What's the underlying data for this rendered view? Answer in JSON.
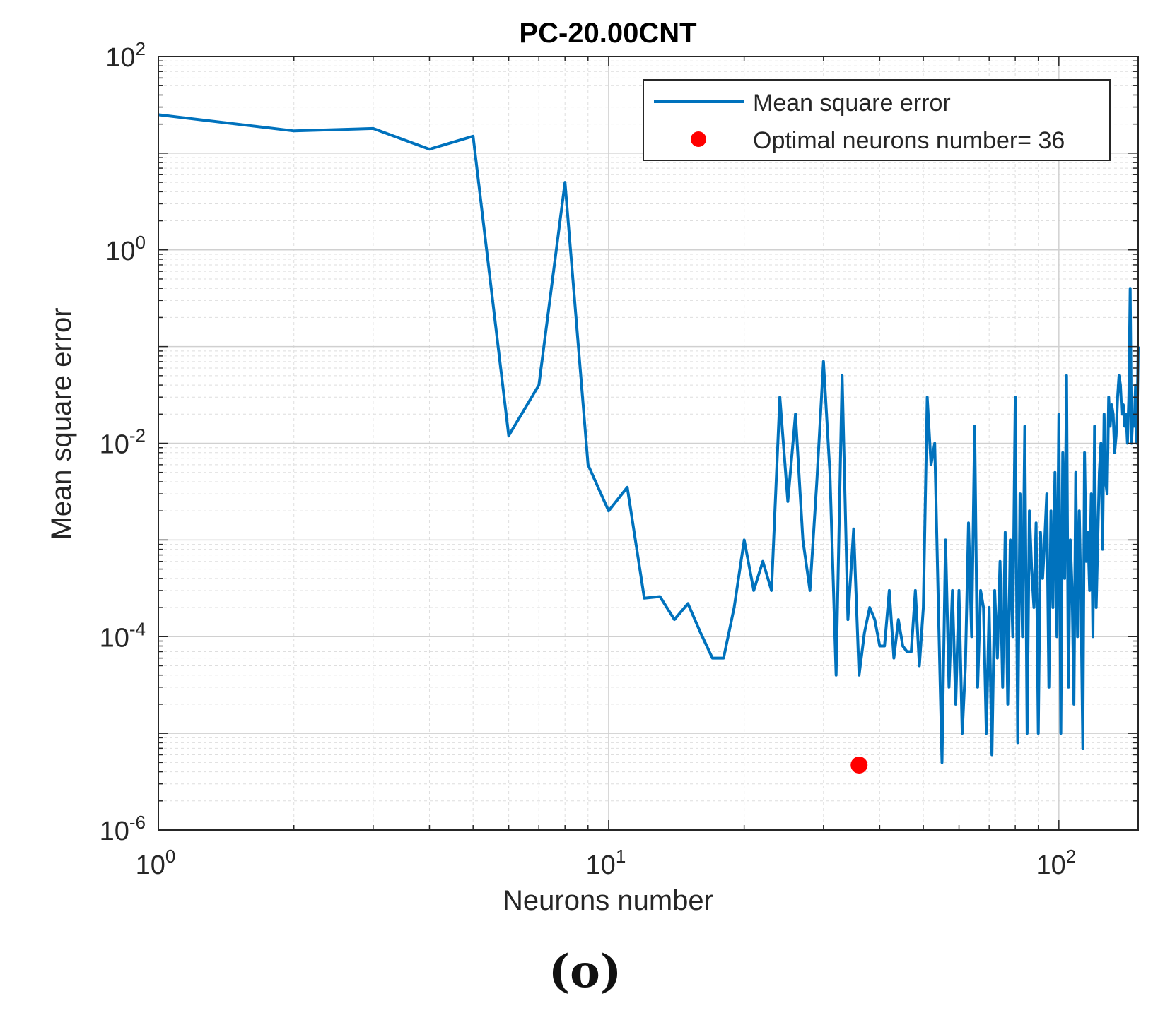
{
  "chart_data": {
    "type": "line",
    "title": "PC-20.00CNT",
    "xlabel": "Neurons number",
    "ylabel": "Mean square error",
    "xscale": "log",
    "yscale": "log",
    "xlim": [
      1,
      150
    ],
    "ylim": [
      1e-06,
      100
    ],
    "grid": true,
    "minor_grid": true,
    "x_ticks": [
      {
        "value": 1,
        "base": "10",
        "exp": "0"
      },
      {
        "value": 10,
        "base": "10",
        "exp": "1"
      },
      {
        "value": 100,
        "base": "10",
        "exp": "2"
      }
    ],
    "y_ticks": [
      {
        "value": 1e-06,
        "base": "10",
        "exp": "-6"
      },
      {
        "value": 0.0001,
        "base": "10",
        "exp": "-4"
      },
      {
        "value": 0.01,
        "base": "10",
        "exp": "-2"
      },
      {
        "value": 1,
        "base": "10",
        "exp": "0"
      },
      {
        "value": 100,
        "base": "10",
        "exp": "2"
      }
    ],
    "legend": {
      "position": "top-right",
      "entries": [
        {
          "label": "Mean square error",
          "kind": "line"
        },
        {
          "label": "Optimal neurons number= 36",
          "kind": "marker"
        }
      ]
    },
    "series": [
      {
        "name": "Mean square error",
        "color": "#0072BD",
        "x": [
          1,
          2,
          3,
          4,
          5,
          6,
          7,
          8,
          9,
          10,
          11,
          12,
          13,
          14,
          15,
          16,
          17,
          18,
          19,
          20,
          21,
          22,
          23,
          24,
          25,
          26,
          27,
          28,
          29,
          30,
          31,
          32,
          33,
          34,
          35,
          36,
          37,
          38,
          39,
          40,
          41,
          42,
          43,
          44,
          45,
          46,
          47,
          48,
          49,
          50,
          51,
          52,
          53,
          54,
          55,
          56,
          57,
          58,
          59,
          60,
          61,
          62,
          63,
          64,
          65,
          66,
          67,
          68,
          69,
          70,
          71,
          72,
          73,
          74,
          75,
          76,
          77,
          78,
          79,
          80,
          81,
          82,
          83,
          84,
          85,
          86,
          87,
          88,
          89,
          90,
          91,
          92,
          93,
          94,
          95,
          96,
          97,
          98,
          99,
          100,
          101,
          102,
          103,
          104,
          105,
          106,
          107,
          108,
          109,
          110,
          111,
          112,
          113,
          114,
          115,
          116,
          117,
          118,
          119,
          120,
          121,
          122,
          123,
          124,
          125,
          126,
          127,
          128,
          129,
          130,
          131,
          132,
          133,
          134,
          135,
          136,
          137,
          138,
          139,
          140,
          141,
          142,
          143,
          144,
          145,
          146,
          147,
          148,
          149,
          150
        ],
        "y": [
          25,
          17,
          18,
          11,
          15,
          0.012,
          0.04,
          5,
          0.006,
          0.002,
          0.0035,
          0.00025,
          0.00026,
          0.00015,
          0.00022,
          0.00011,
          6e-05,
          6e-05,
          0.0002,
          0.001,
          0.0003,
          0.0006,
          0.0003,
          0.03,
          0.0025,
          0.02,
          0.001,
          0.0003,
          0.004,
          0.07,
          0.005,
          4e-05,
          0.05,
          0.00015,
          0.0013,
          4e-05,
          0.00011,
          0.0002,
          0.00015,
          8e-05,
          8e-05,
          0.0003,
          6e-05,
          0.00015,
          8e-05,
          7e-05,
          7e-05,
          0.0003,
          5e-05,
          0.0002,
          0.03,
          0.006,
          0.01,
          0.0002,
          5e-06,
          0.001,
          3e-05,
          0.0003,
          2e-05,
          0.0003,
          1e-05,
          5e-05,
          0.0015,
          0.0001,
          0.015,
          3e-05,
          0.0003,
          0.0002,
          1e-05,
          0.0002,
          6e-06,
          0.0003,
          6e-05,
          0.0006,
          3e-05,
          0.0012,
          2e-05,
          0.001,
          0.0001,
          0.03,
          8e-06,
          0.003,
          0.0001,
          0.015,
          1e-05,
          0.002,
          0.0005,
          0.0002,
          0.0015,
          1e-05,
          0.0012,
          0.0004,
          0.001,
          0.003,
          3e-05,
          0.002,
          0.0002,
          0.005,
          0.0001,
          0.02,
          1e-05,
          0.008,
          0.0004,
          0.05,
          3e-05,
          0.001,
          0.0003,
          2e-05,
          0.005,
          0.0001,
          0.002,
          0.0002,
          7e-06,
          0.008,
          0.0006,
          0.0012,
          0.0003,
          0.003,
          0.0001,
          0.015,
          0.0002,
          0.001,
          0.005,
          0.01,
          0.0008,
          0.02,
          0.004,
          0.003,
          0.03,
          0.015,
          0.025,
          0.02,
          0.008,
          0.012,
          0.03,
          0.05,
          0.04,
          0.02,
          0.025,
          0.015,
          0.02,
          0.01,
          0.03,
          0.4,
          0.01,
          0.02,
          0.015,
          0.04,
          0.01,
          0.1
        ],
        "actual_x": "note: series sampled to approximate plotted curve"
      }
    ],
    "optimal_point": {
      "x": 36,
      "y": 4.7e-06,
      "color": "#FF0000"
    }
  },
  "figure": {
    "caption": "(o)"
  }
}
